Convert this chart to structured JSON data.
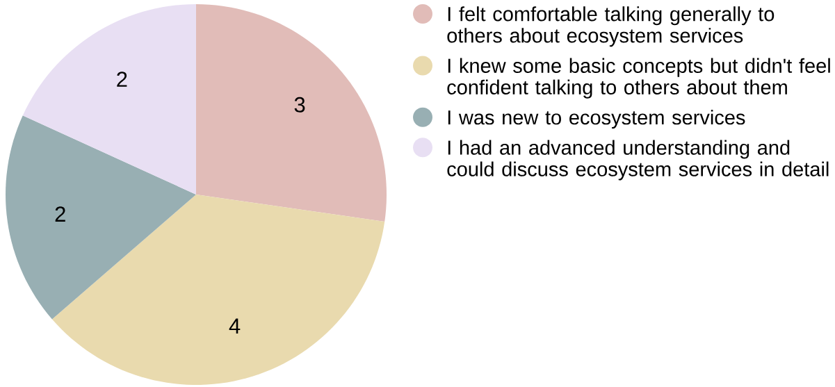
{
  "chart_data": {
    "type": "pie",
    "categories": [
      "I felt comfortable talking generally to others about ecosystem services",
      "I knew some basic concepts but didn't feel confident talking to others about them",
      "I was new to ecosystem services",
      "I had an advanced understanding and could discuss ecosystem services in detail"
    ],
    "values": [
      3,
      4,
      2,
      2
    ],
    "colors": [
      "#e1bcb8",
      "#e9daae",
      "#98afb3",
      "#e8dff3"
    ],
    "data_labels": true,
    "legend": "right"
  }
}
